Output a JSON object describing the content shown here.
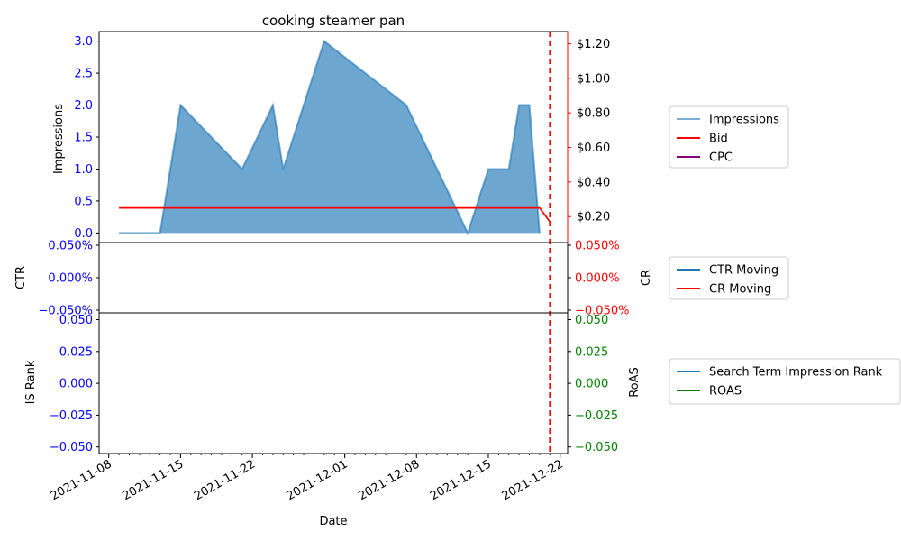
{
  "chart_data": [
    {
      "type": "area",
      "title": "cooking steamer pan",
      "ylabel": "Impressions",
      "y2label": "",
      "ylim": [
        -0.15,
        3.15
      ],
      "y2lim": [
        0.05,
        1.27
      ],
      "yticks": [
        "0.0",
        "0.5",
        "1.0",
        "1.5",
        "2.0",
        "2.5",
        "3.0"
      ],
      "y2ticks": [
        "$0.20",
        "$0.40",
        "$0.60",
        "$0.80",
        "$1.00",
        "$1.20"
      ],
      "y2tick_values": [
        0.2,
        0.4,
        0.6,
        0.8,
        1.0,
        1.2
      ],
      "series": [
        {
          "name": "Impressions",
          "axis": "left",
          "color": "#1f77b4",
          "points": [
            [
              "2021-11-09",
              0
            ],
            [
              "2021-11-13",
              0
            ],
            [
              "2021-11-15",
              2
            ],
            [
              "2021-11-21",
              1
            ],
            [
              "2021-11-24",
              2
            ],
            [
              "2021-11-25",
              1
            ],
            [
              "2021-11-29",
              3
            ],
            [
              "2021-12-07",
              2
            ],
            [
              "2021-12-13",
              0
            ],
            [
              "2021-12-15",
              1
            ],
            [
              "2021-12-17",
              1
            ],
            [
              "2021-12-18",
              2
            ],
            [
              "2021-12-19",
              2
            ],
            [
              "2021-12-20",
              0
            ]
          ]
        },
        {
          "name": "Bid",
          "axis": "right",
          "color": "#ff0000",
          "points": [
            [
              "2021-11-09",
              0.25
            ],
            [
              "2021-12-20",
              0.25
            ],
            [
              "2021-12-21",
              0.17
            ]
          ]
        },
        {
          "name": "CPC",
          "axis": "right",
          "color": "#800080",
          "points": []
        }
      ],
      "vline": {
        "date": "2021-12-21",
        "color": "#ff0000",
        "style": "dashed"
      }
    },
    {
      "type": "line",
      "ylabel": "CTR",
      "y2label": "CR",
      "yticks": [
        "0.050%",
        "0.000%",
        "−0.050%"
      ],
      "y2ticks": [
        "0.050%",
        "0.000%",
        "−0.050%"
      ],
      "series": [
        {
          "name": "CTR Moving",
          "color": "#1f77b4",
          "points": []
        },
        {
          "name": "CR Moving",
          "color": "#ff0000",
          "points": []
        }
      ]
    },
    {
      "type": "line",
      "ylabel": "IS Rank",
      "y2label": "RoAS",
      "xlabel": "Date",
      "yticks": [
        "0.050",
        "0.025",
        "0.000",
        "−0.025",
        "−0.050"
      ],
      "y2ticks": [
        "0.050",
        "0.025",
        "0.000",
        "−0.025",
        "−0.050"
      ],
      "series": [
        {
          "name": "Search Term Impression Rank",
          "color": "#1f77b4",
          "points": []
        },
        {
          "name": "ROAS",
          "color": "#008000",
          "points": []
        }
      ],
      "xticks": [
        "2021-11-08",
        "2021-11-15",
        "2021-11-22",
        "2021-12-01",
        "2021-12-08",
        "2021-12-15",
        "2021-12-22"
      ]
    }
  ],
  "colors": {
    "left_axis": "#0000ff",
    "right_axis_top": "#ff0000",
    "right_axis_bottom": "#008000"
  }
}
